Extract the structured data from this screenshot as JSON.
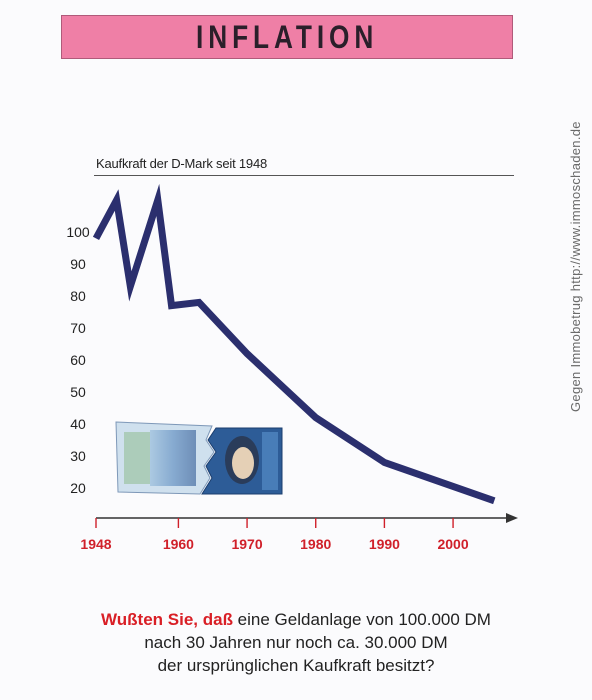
{
  "header": {
    "title": "INFLATION"
  },
  "side_text": "Gegen Immobetrug http://www.immoschaden.de",
  "question": {
    "highlight": "Wußten Sie, daß",
    "line1_rest": " eine Geldanlage von 100.000 DM",
    "line2": "nach 30 Jahren nur noch ca. 30.000 DM",
    "line3": "der ursprünglichen Kaufkraft besitzt?"
  },
  "colors": {
    "line": "#2b2f6e",
    "xaxis_labels": "#d0202a",
    "banner": "#ef7fa6"
  },
  "chart_data": {
    "type": "line",
    "subtitle": "Kaufkraft der D-Mark seit 1948",
    "x": [
      1948,
      1951,
      1953,
      1957,
      1959,
      1963,
      1970,
      1980,
      1990,
      2006
    ],
    "values": [
      98,
      110,
      83,
      110,
      77,
      78,
      62,
      42,
      28,
      16
    ],
    "y_ticks": [
      100,
      90,
      80,
      70,
      60,
      50,
      40,
      30,
      20
    ],
    "x_ticks": [
      1948,
      1960,
      1970,
      1980,
      1990,
      2000
    ],
    "xlim": [
      1948,
      2008
    ],
    "ylim": [
      10,
      110
    ],
    "grid": false
  }
}
